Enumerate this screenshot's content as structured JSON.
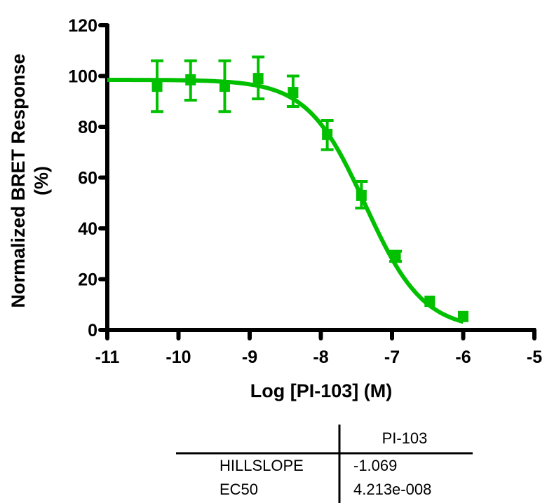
{
  "chart_data": {
    "type": "scatter",
    "title": "",
    "xlabel": "Log [PI-103] (M)",
    "ylabel_lines": [
      "Normalized BRET Response",
      "(%)"
    ],
    "xlim": [
      -11,
      -5
    ],
    "ylim": [
      0,
      120
    ],
    "xticks": [
      -11,
      -10,
      -9,
      -8,
      -7,
      -6,
      -5
    ],
    "xtick_labels": [
      "-11",
      "-10",
      "-9",
      "-8",
      "-7",
      "-6",
      "-5"
    ],
    "yticks": [
      0,
      20,
      40,
      60,
      80,
      100,
      120
    ],
    "ytick_labels": [
      "0",
      "20",
      "40",
      "60",
      "80",
      "100",
      "120"
    ],
    "grid": false,
    "color": "#00c000",
    "series": [
      {
        "name": "PI-103",
        "marker": "square",
        "points": [
          {
            "x": -10.3,
            "y": 96.0,
            "err_low": 86.0,
            "err_high": 106.0
          },
          {
            "x": -9.83,
            "y": 98.5,
            "err_low": 90.5,
            "err_high": 106.0
          },
          {
            "x": -9.35,
            "y": 96.0,
            "err_low": 86.0,
            "err_high": 106.0
          },
          {
            "x": -8.88,
            "y": 99.0,
            "err_low": 91.0,
            "err_high": 107.5
          },
          {
            "x": -8.39,
            "y": 93.5,
            "err_low": 88.0,
            "err_high": 100.0
          },
          {
            "x": -7.91,
            "y": 77.0,
            "err_low": 71.0,
            "err_high": 82.5
          },
          {
            "x": -7.43,
            "y": 53.0,
            "err_low": 48.0,
            "err_high": 58.5
          },
          {
            "x": -6.95,
            "y": 29.0,
            "err_low": 27.0,
            "err_high": 31.0
          },
          {
            "x": -6.47,
            "y": 11.3,
            "err_low": 11.3,
            "err_high": 11.3
          },
          {
            "x": -6.0,
            "y": 5.3,
            "err_low": 5.3,
            "err_high": 5.3
          }
        ],
        "fit": {
          "model": "sigmoidal dose-response (variable slope)",
          "bottom": 0,
          "top": 98.5,
          "logEC50": -7.375,
          "hillslope": -1.069,
          "x_range": [
            -11,
            -6
          ]
        }
      }
    ],
    "results_table": {
      "column_header": "PI-103",
      "rows": [
        {
          "label": "HILLSLOPE",
          "value": "-1.069"
        },
        {
          "label": "EC50",
          "value": "4.213e-008"
        }
      ]
    }
  }
}
